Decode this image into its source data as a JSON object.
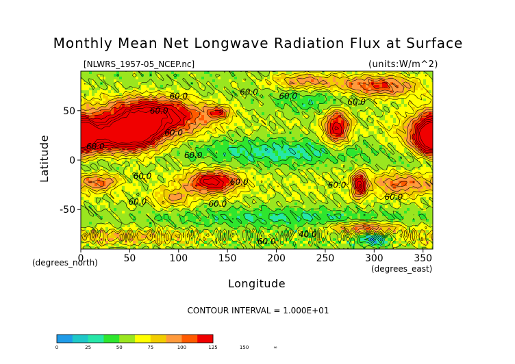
{
  "chart_data": {
    "type": "heatmap",
    "title": "Monthly Mean Net Longwave Radiation Flux at Surface",
    "subtitle_left": "[NLWRS_1957-05_NCEP.nc]",
    "subtitle_right": "(units:W/m^2)",
    "xlabel": "Longitude",
    "ylabel": "Latitude",
    "x_unit_label": "(degrees_east)",
    "y_unit_label": "(degrees_north)",
    "xlim": [
      0,
      360
    ],
    "ylim": [
      -90,
      90
    ],
    "x_ticks": [
      0,
      50,
      100,
      150,
      200,
      250,
      300,
      350
    ],
    "y_ticks": [
      50,
      0,
      -50
    ],
    "contour_interval_text": "CONTOUR INTERVAL = 1.000E+01",
    "contour_labels": [
      {
        "text": "60.0",
        "lon": 100,
        "lat": 62
      },
      {
        "text": "60.0",
        "lon": 80,
        "lat": 47
      },
      {
        "text": "60.0",
        "lon": 95,
        "lat": 25
      },
      {
        "text": "60.0",
        "lon": 15,
        "lat": 11
      },
      {
        "text": "60.0",
        "lon": 172,
        "lat": 66
      },
      {
        "text": "60.0",
        "lon": 212,
        "lat": 62
      },
      {
        "text": "60.0",
        "lon": 282,
        "lat": 56
      },
      {
        "text": "60.0",
        "lon": 115,
        "lat": 2
      },
      {
        "text": "60.0",
        "lon": 63,
        "lat": -19
      },
      {
        "text": "60.0",
        "lon": 162,
        "lat": -25
      },
      {
        "text": "60.0",
        "lon": 262,
        "lat": -28
      },
      {
        "text": "60.0",
        "lon": 320,
        "lat": -40
      },
      {
        "text": "60.0",
        "lon": 58,
        "lat": -45
      },
      {
        "text": "60.0",
        "lon": 140,
        "lat": -47
      },
      {
        "text": "40.0",
        "lon": 232,
        "lat": -78
      },
      {
        "text": "60.0",
        "lon": 190,
        "lat": -85
      }
    ],
    "colorbar": {
      "labels": [
        "0",
        "25",
        "50",
        "75",
        "100",
        "125",
        "150",
        "∞"
      ],
      "colors": [
        "#1f9be8",
        "#1ec8c8",
        "#26e6a8",
        "#2ee62e",
        "#9ae61f",
        "#ffff00",
        "#f2cd00",
        "#ff9a3c",
        "#ff5a00",
        "#f00000"
      ]
    },
    "features": [
      {
        "lon": 20,
        "lat": 25,
        "sx": 30,
        "sy": 15,
        "amp": 82
      },
      {
        "lon": 58,
        "lat": 28,
        "sx": 18,
        "sy": 12,
        "amp": 78
      },
      {
        "lon": 90,
        "lat": 42,
        "sx": 28,
        "sy": 12,
        "amp": 62
      },
      {
        "lon": 62,
        "lat": 53,
        "sx": 28,
        "sy": 9,
        "amp": 40
      },
      {
        "lon": 140,
        "lat": 48,
        "sx": 9,
        "sy": 5,
        "amp": 45
      },
      {
        "lon": 357,
        "lat": 24,
        "sx": 10,
        "sy": 14,
        "amp": 80
      },
      {
        "lon": 262,
        "lat": 33,
        "sx": 9,
        "sy": 13,
        "amp": 70
      },
      {
        "lon": 305,
        "lat": 75,
        "sx": 28,
        "sy": 8,
        "amp": 55
      },
      {
        "lon": 230,
        "lat": 80,
        "sx": 25,
        "sy": 6,
        "amp": 38
      },
      {
        "lon": 135,
        "lat": -22,
        "sx": 18,
        "sy": 8,
        "amp": 75
      },
      {
        "lon": 20,
        "lat": -22,
        "sx": 13,
        "sy": 6,
        "amp": 42
      },
      {
        "lon": 285,
        "lat": -25,
        "sx": 5,
        "sy": 9,
        "amp": 75
      },
      {
        "lon": 328,
        "lat": -24,
        "sx": 22,
        "sy": 8,
        "amp": 40
      },
      {
        "lon": 95,
        "lat": -38,
        "sx": 14,
        "sy": 7,
        "amp": 30
      },
      {
        "lon": 200,
        "lat": 8,
        "sx": 70,
        "sy": 10,
        "amp": -30
      },
      {
        "lon": 10,
        "lat": 0,
        "sx": 35,
        "sy": 10,
        "amp": -22
      },
      {
        "lon": 210,
        "lat": -58,
        "sx": 90,
        "sy": 7,
        "amp": -22
      },
      {
        "lon": 240,
        "lat": 60,
        "sx": 35,
        "sy": 8,
        "amp": -18
      },
      {
        "lon": 300,
        "lat": -80,
        "sx": 12,
        "sy": 4,
        "amp": -45
      },
      {
        "lon": 40,
        "lat": -78,
        "sx": 60,
        "sy": 6,
        "amp": 28
      },
      {
        "lon": 290,
        "lat": -68,
        "sx": 25,
        "sy": 4,
        "amp": 45
      }
    ]
  }
}
